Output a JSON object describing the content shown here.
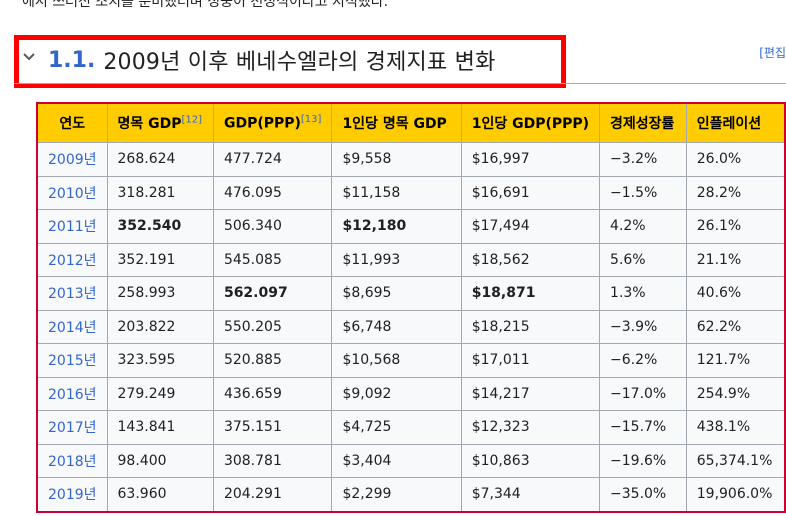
{
  "top_text": "에서 쓰러진 조치를 준비했더며 정중이 천정식이라고 지적했다.",
  "heading": {
    "number": "1.1.",
    "title": "2009년 이후 베네수엘라의 경제지표 변화",
    "edit": "[편집"
  },
  "table": {
    "headers": [
      {
        "label": "연도",
        "ref": ""
      },
      {
        "label": "명목 GDP",
        "ref": "[12]"
      },
      {
        "label": "GDP(PPP)",
        "ref": "[13]"
      },
      {
        "label": "1인당 명목 GDP",
        "ref": ""
      },
      {
        "label": "1인당 GDP(PPP)",
        "ref": ""
      },
      {
        "label": "경제성장률",
        "ref": ""
      },
      {
        "label": "인플레이션",
        "ref": ""
      }
    ],
    "rows": [
      {
        "year": "2009년",
        "gdp": "268.624",
        "ppp": "477.724",
        "pc": "$9,558",
        "pcppp": "$16,997",
        "growth": "−3.2%",
        "infl": "26.0%"
      },
      {
        "year": "2010년",
        "gdp": "318.281",
        "ppp": "476.095",
        "pc": "$11,158",
        "pcppp": "$16,691",
        "growth": "−1.5%",
        "infl": "28.2%"
      },
      {
        "year": "2011년",
        "gdp": "352.540",
        "ppp": "506.340",
        "pc": "$12,180",
        "pcppp": "$17,494",
        "growth": "4.2%",
        "infl": "26.1%"
      },
      {
        "year": "2012년",
        "gdp": "352.191",
        "ppp": "545.085",
        "pc": "$11,993",
        "pcppp": "$18,562",
        "growth": "5.6%",
        "infl": "21.1%"
      },
      {
        "year": "2013년",
        "gdp": "258.993",
        "ppp": "562.097",
        "pc": "$8,695",
        "pcppp": "$18,871",
        "growth": "1.3%",
        "infl": "40.6%"
      },
      {
        "year": "2014년",
        "gdp": "203.822",
        "ppp": "550.205",
        "pc": "$6,748",
        "pcppp": "$18,215",
        "growth": "−3.9%",
        "infl": "62.2%"
      },
      {
        "year": "2015년",
        "gdp": "323.595",
        "ppp": "520.885",
        "pc": "$10,568",
        "pcppp": "$17,011",
        "growth": "−6.2%",
        "infl": "121.7%"
      },
      {
        "year": "2016년",
        "gdp": "279.249",
        "ppp": "436.659",
        "pc": "$9,092",
        "pcppp": "$14,217",
        "growth": "−17.0%",
        "infl": "254.9%"
      },
      {
        "year": "2017년",
        "gdp": "143.841",
        "ppp": "375.151",
        "pc": "$4,725",
        "pcppp": "$12,323",
        "growth": "−15.7%",
        "infl": "438.1%"
      },
      {
        "year": "2018년",
        "gdp": "98.400",
        "ppp": "308.781",
        "pc": "$3,404",
        "pcppp": "$10,863",
        "growth": "−19.6%",
        "infl": "65,374.1%"
      },
      {
        "year": "2019년",
        "gdp": "63.960",
        "ppp": "204.291",
        "pc": "$2,299",
        "pcppp": "$7,344",
        "growth": "−35.0%",
        "infl": "19,906.0%"
      }
    ],
    "bold_cells": [
      {
        "row": 2,
        "col": "gdp"
      },
      {
        "row": 2,
        "col": "pc"
      },
      {
        "row": 4,
        "col": "ppp"
      },
      {
        "row": 4,
        "col": "pcppp"
      }
    ]
  },
  "colors": {
    "header_bg": "#ffcc00",
    "table_border": "#cc0033",
    "highlight_box": "#ff0000",
    "link": "#3366cc"
  },
  "icons": {
    "collapse": "chevron-down-icon"
  }
}
